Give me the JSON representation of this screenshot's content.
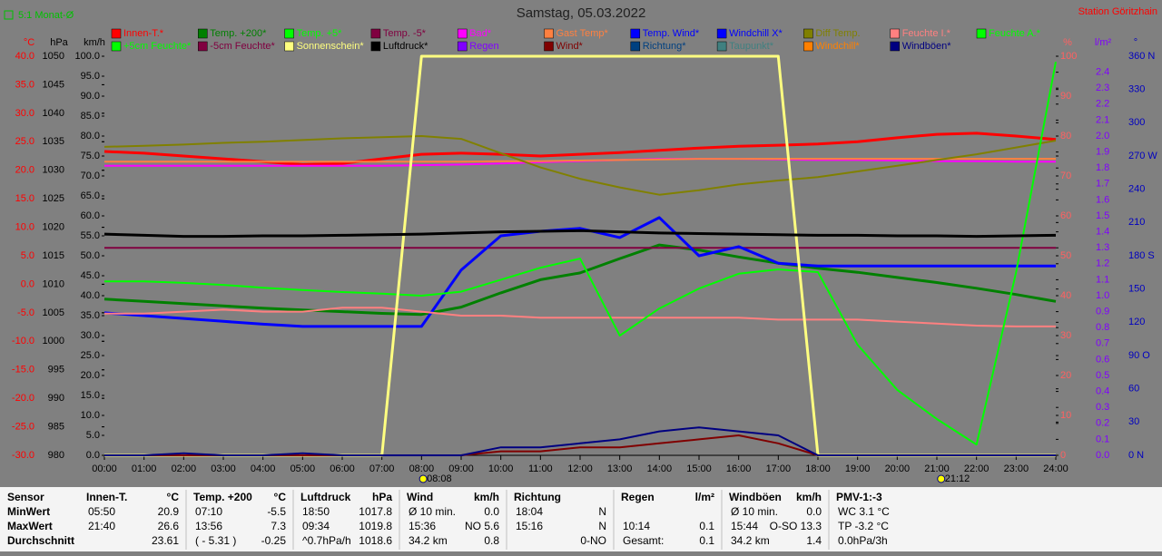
{
  "chart_data": {
    "type": "line",
    "title": "Samstag, 05.03.2022",
    "subtitle": "Station Göritzhain",
    "note": "5:1 Monat-Ø",
    "sun_markers": [
      {
        "value": 8.133,
        "label": "08:08"
      },
      {
        "value": 21.2,
        "label": "21:12"
      }
    ],
    "x": [
      0,
      1,
      2,
      3,
      4,
      5,
      6,
      7,
      8,
      9,
      10,
      11,
      12,
      13,
      14,
      15,
      16,
      17,
      18,
      19,
      20,
      21,
      22,
      23,
      24
    ],
    "xlim": [
      0,
      24
    ],
    "xticks": [
      {
        "value": 0,
        "label": "00:00"
      },
      {
        "value": 1,
        "label": "01:00"
      },
      {
        "value": 2,
        "label": "02:00"
      },
      {
        "value": 3,
        "label": "03:00"
      },
      {
        "value": 4,
        "label": "04:00"
      },
      {
        "value": 5,
        "label": "05:00"
      },
      {
        "value": 6,
        "label": "06:00"
      },
      {
        "value": 7,
        "label": "07:00"
      },
      {
        "value": 8,
        "label": "08:00"
      },
      {
        "value": 9,
        "label": "09:00"
      },
      {
        "value": 10,
        "label": "10:00"
      },
      {
        "value": 11,
        "label": "11:00"
      },
      {
        "value": 12,
        "label": "12:00"
      },
      {
        "value": 13,
        "label": "13:00"
      },
      {
        "value": 14,
        "label": "14:00"
      },
      {
        "value": 15,
        "label": "15:00"
      },
      {
        "value": 16,
        "label": "16:00"
      },
      {
        "value": 17,
        "label": "17:00"
      },
      {
        "value": 18,
        "label": "18:00"
      },
      {
        "value": 19,
        "label": "19:00"
      },
      {
        "value": 20,
        "label": "20:00"
      },
      {
        "value": 21,
        "label": "21:00"
      },
      {
        "value": 22,
        "label": "22:00"
      },
      {
        "value": 23,
        "label": "23:00"
      },
      {
        "value": 24,
        "label": "24:00"
      }
    ],
    "axes": {
      "temp": {
        "label": "°C",
        "side": "left",
        "color": "#ff0000",
        "lim": [
          -30,
          40
        ],
        "ticks": [
          {
            "value": 40,
            "label": "40.0"
          },
          {
            "value": 35,
            "label": "35.0"
          },
          {
            "value": 30,
            "label": "30.0"
          },
          {
            "value": 25,
            "label": "25.0"
          },
          {
            "value": 20,
            "label": "20.0"
          },
          {
            "value": 15,
            "label": "15.0"
          },
          {
            "value": 10,
            "label": "10.0"
          },
          {
            "value": 5,
            "label": "5.0"
          },
          {
            "value": 0,
            "label": "0.0"
          },
          {
            "value": -5,
            "label": "-5.0"
          },
          {
            "value": -10,
            "label": "-10.0"
          },
          {
            "value": -15,
            "label": "-15.0"
          },
          {
            "value": -20,
            "label": "-20.0"
          },
          {
            "value": -25,
            "label": "-25.0"
          },
          {
            "value": -30,
            "label": "-30.0"
          }
        ]
      },
      "pressure": {
        "label": "hPa",
        "side": "left",
        "color": "#000000",
        "lim": [
          980,
          1050
        ],
        "ticks": [
          1050,
          1045,
          1040,
          1035,
          1030,
          1025,
          1020,
          1015,
          1010,
          1005,
          1000,
          995,
          990,
          985,
          980
        ]
      },
      "speed": {
        "label": "km/h",
        "side": "left",
        "color": "#000000",
        "lim": [
          0,
          100
        ],
        "ticks": [
          {
            "value": 100,
            "label": "100.0"
          },
          {
            "value": 95,
            "label": "95.0"
          },
          {
            "value": 90,
            "label": "90.0"
          },
          {
            "value": 85,
            "label": "85.0"
          },
          {
            "value": 80,
            "label": "80.0"
          },
          {
            "value": 75,
            "label": "75.0"
          },
          {
            "value": 70,
            "label": "70.0"
          },
          {
            "value": 65,
            "label": "65.0"
          },
          {
            "value": 60,
            "label": "60.0"
          },
          {
            "value": 55,
            "label": "55.0"
          },
          {
            "value": 50,
            "label": "50.0"
          },
          {
            "value": 45,
            "label": "45.0"
          },
          {
            "value": 40,
            "label": "40.0"
          },
          {
            "value": 35,
            "label": "35.0"
          },
          {
            "value": 30,
            "label": "30.0"
          },
          {
            "value": 25,
            "label": "25.0"
          },
          {
            "value": 20,
            "label": "20.0"
          },
          {
            "value": 15,
            "label": "15.0"
          },
          {
            "value": 10,
            "label": "10.0"
          },
          {
            "value": 5,
            "label": "5.0"
          },
          {
            "value": 0,
            "label": "0.0"
          }
        ]
      },
      "humidity": {
        "label": "%",
        "side": "right",
        "color": "#ff6060",
        "lim": [
          0,
          100
        ],
        "ticks": [
          100,
          90,
          80,
          70,
          60,
          50,
          40,
          30,
          20,
          10,
          0
        ]
      },
      "rain": {
        "label": "l/m²",
        "side": "right",
        "color": "#8000ff",
        "lim": [
          0,
          2.5
        ],
        "ticks": [
          2.4,
          2.3,
          2.2,
          2.1,
          {
            "value": 2,
            "label": "2.0"
          },
          1.9,
          1.8,
          1.7,
          1.6,
          1.5,
          1.4,
          1.3,
          1.2,
          1.1,
          {
            "value": 1,
            "label": "1.0"
          },
          0.9,
          0.8,
          0.7,
          0.6,
          0.5,
          0.4,
          0.3,
          0.2,
          0.1,
          {
            "value": 0,
            "label": "0.0"
          }
        ]
      },
      "direction": {
        "label": "°",
        "side": "right",
        "color": "#0000c0",
        "lim": [
          0,
          360
        ],
        "ticks": [
          {
            "value": 360,
            "label": "360 N"
          },
          330,
          300,
          {
            "value": 270,
            "label": "270 W"
          },
          240,
          210,
          {
            "value": 180,
            "label": "180 S"
          },
          150,
          120,
          {
            "value": 90,
            "label": "90 O"
          },
          60,
          30,
          {
            "value": 0,
            "label": "0 N"
          }
        ]
      }
    },
    "series": [
      {
        "name": "Innen-T.*",
        "color": "#ff0000",
        "axis": "temp",
        "width": 3,
        "values": [
          23.3,
          23.0,
          22.5,
          22.0,
          21.5,
          21.0,
          21.2,
          22.0,
          22.8,
          23.0,
          22.8,
          22.5,
          22.8,
          23.1,
          23.5,
          23.9,
          24.2,
          24.4,
          24.6,
          25.0,
          25.7,
          26.3,
          26.5,
          26.0,
          25.4
        ]
      },
      {
        "name": "Temp. +200*",
        "color": "#008000",
        "axis": "temp",
        "width": 3,
        "values": [
          -2.6,
          -3.0,
          -3.4,
          -3.8,
          -4.2,
          -4.5,
          -4.8,
          -5.1,
          -5.3,
          -4.0,
          -1.5,
          0.8,
          2.0,
          4.5,
          6.9,
          6.0,
          4.8,
          3.7,
          2.8,
          2.1,
          1.2,
          0.3,
          -0.7,
          -1.8,
          -3.0
        ]
      },
      {
        "name": "Temp. +5*",
        "color": "#00ff00",
        "axis": "temp"
      },
      {
        "name": "Temp. -5*",
        "color": "#800040",
        "axis": "temp",
        "width": 2,
        "values": [
          6.4,
          6.4,
          6.4,
          6.4,
          6.4,
          6.4,
          6.4,
          6.4,
          6.4,
          6.4,
          6.4,
          6.4,
          6.4,
          6.4,
          6.4,
          6.4,
          6.4,
          6.4,
          6.4,
          6.4,
          6.4,
          6.4,
          6.4,
          6.4,
          6.4
        ]
      },
      {
        "name": "Bad*",
        "color": "#ff00ff",
        "axis": "temp",
        "width": 2,
        "values": [
          20.8,
          20.8,
          20.8,
          20.8,
          20.8,
          20.8,
          20.8,
          20.8,
          20.9,
          21.0,
          21.2,
          21.4,
          21.6,
          21.8,
          22.0,
          22.0,
          22.0,
          21.9,
          21.8,
          21.8,
          21.7,
          21.6,
          21.6,
          21.5,
          21.5
        ]
      },
      {
        "name": "Gast Temp*",
        "color": "#ff8040",
        "axis": "temp",
        "width": 2,
        "values": [
          21.5,
          21.5,
          21.5,
          21.5,
          21.5,
          21.5,
          21.5,
          21.5,
          21.5,
          21.5,
          21.6,
          21.6,
          21.7,
          21.8,
          21.9,
          22.0,
          22.0,
          22.0,
          22.0,
          22.0,
          22.0,
          22.0,
          22.0,
          22.0,
          22.0
        ]
      },
      {
        "name": "Temp. Wind*",
        "color": "#0000ff",
        "axis": "temp",
        "width": 3,
        "values": [
          -5.0,
          -5.5,
          -6.0,
          -6.5,
          -7.0,
          -7.4,
          -7.4,
          -7.4,
          -7.4,
          2.5,
          8.5,
          9.3,
          9.8,
          8.2,
          11.7,
          5.0,
          6.6,
          3.7,
          3.2,
          3.2,
          3.2,
          3.2,
          3.2,
          3.2,
          3.2
        ]
      },
      {
        "name": "Windchill X*",
        "color": "#0000ff",
        "axis": "temp"
      },
      {
        "name": "Diff Temp.",
        "color": "#808000",
        "axis": "temp",
        "width": 2,
        "values": [
          24.1,
          24.3,
          24.5,
          24.8,
          25.0,
          25.3,
          25.6,
          25.8,
          26.0,
          25.5,
          23.0,
          20.5,
          18.5,
          17.0,
          15.7,
          16.5,
          17.5,
          18.2,
          18.8,
          19.8,
          20.8,
          21.8,
          22.8,
          24.0,
          25.2
        ]
      },
      {
        "name": "Feuchte I.*",
        "color": "#ff8080",
        "axis": "humidity",
        "width": 2,
        "values": [
          35.5,
          35.5,
          36,
          36.5,
          36,
          36,
          37,
          37,
          36,
          35,
          35,
          34.5,
          34.5,
          34.5,
          34.5,
          34.5,
          34.5,
          34,
          34,
          34,
          33.5,
          33,
          32.5,
          32.3,
          32.3
        ]
      },
      {
        "name": "Feuchte A.*",
        "color": "#00ff00",
        "axis": "humidity",
        "width": 2,
        "values": [
          43.6,
          43.6,
          43.2,
          42.7,
          42.0,
          41.4,
          40.9,
          40.5,
          40.0,
          41.0,
          44.0,
          47.0,
          49.3,
          30,
          36.8,
          41.8,
          45.5,
          46.6,
          45.9,
          27.7,
          16.4,
          9.1,
          2.7,
          45.9,
          98.6
        ]
      },
      {
        "name": "+5cm Feuchte*",
        "color": "#00ff00",
        "axis": "humidity"
      },
      {
        "name": "-5cm Feuchte*",
        "color": "#800040",
        "axis": "humidity"
      },
      {
        "name": "Sonnenschein*",
        "color": "#ffff80",
        "axis": "humidity",
        "width": 3,
        "values": [
          0,
          0,
          0,
          0,
          0,
          0,
          0,
          0,
          100,
          100,
          100,
          100,
          100,
          100,
          100,
          100,
          100,
          100,
          0,
          0,
          0,
          0,
          0,
          0,
          0
        ]
      },
      {
        "name": "Luftdruck*",
        "color": "#000000",
        "axis": "pressure",
        "width": 3,
        "values": [
          1018.8,
          1018.6,
          1018.4,
          1018.4,
          1018.5,
          1018.5,
          1018.6,
          1018.7,
          1018.8,
          1019.0,
          1019.2,
          1019.3,
          1019.4,
          1019.2,
          1019.0,
          1018.9,
          1018.8,
          1018.7,
          1018.6,
          1018.6,
          1018.5,
          1018.5,
          1018.4,
          1018.5,
          1018.6
        ]
      },
      {
        "name": "Regen",
        "color": "#8000ff",
        "axis": "rain"
      },
      {
        "name": "Wind*",
        "color": "#800000",
        "axis": "speed",
        "width": 2,
        "values": [
          0,
          0,
          0,
          0,
          0,
          0,
          0,
          0,
          0,
          0,
          1,
          1,
          2,
          2,
          3,
          4,
          5,
          3,
          0,
          0,
          0,
          0,
          0,
          0,
          0
        ]
      },
      {
        "name": "Richtung*",
        "color": "#004080",
        "axis": "direction"
      },
      {
        "name": "Taupunkt*",
        "color": "#408080",
        "axis": "temp"
      },
      {
        "name": "Windchill*",
        "color": "#ff8000",
        "axis": "temp"
      },
      {
        "name": "Windböen*",
        "color": "#000080",
        "axis": "speed",
        "width": 2,
        "values": [
          0,
          0,
          0.5,
          0,
          0,
          0.5,
          0,
          0,
          0,
          0,
          2,
          2,
          3,
          4,
          6,
          7,
          6,
          5,
          0,
          0,
          0,
          0,
          0,
          0,
          0
        ]
      }
    ]
  },
  "table": {
    "columns": [
      {
        "header": "Sensor",
        "rows": [
          [
            "MinWert"
          ],
          [
            "MaxWert"
          ],
          [
            "Durchschnitt"
          ]
        ]
      },
      {
        "header": "Innen-T.",
        "unit": "°C",
        "rows": [
          [
            "05:50",
            "20.9"
          ],
          [
            "21:40",
            "26.6"
          ],
          [
            "23.61"
          ]
        ]
      },
      {
        "header": "Temp. +200",
        "unit": "°C",
        "rows": [
          [
            "07:10",
            "-5.5"
          ],
          [
            "13:56",
            "7.3"
          ],
          [
            "( - 5.31 )",
            "-0.25"
          ]
        ]
      },
      {
        "header": "Luftdruck",
        "unit": "hPa",
        "rows": [
          [
            "18:50",
            "1017.8"
          ],
          [
            "09:34",
            "1019.8"
          ],
          [
            "^0.7hPa/h",
            "1018.6"
          ]
        ]
      },
      {
        "header": "Wind",
        "unit": "km/h",
        "rows": [
          [
            "Ø 10 min.",
            "0.0"
          ],
          [
            "15:36",
            "NO 5.6"
          ],
          [
            "34.2 km",
            "0.8"
          ]
        ]
      },
      {
        "header": "Richtung",
        "rows": [
          [
            "18:04",
            "N"
          ],
          [
            "15:16",
            "N"
          ],
          [
            "0-NO"
          ]
        ]
      },
      {
        "header": "Regen",
        "unit": "l/m²",
        "rows": [
          [],
          [
            "10:14",
            "0.1"
          ],
          [
            "Gesamt:",
            "0.1"
          ]
        ]
      },
      {
        "header": "Windböen",
        "unit": "km/h",
        "rows": [
          [
            "Ø 10 min.",
            "0.0"
          ],
          [
            "15:44",
            "O-SO 13.3"
          ],
          [
            "34.2 km",
            "1.4"
          ]
        ]
      },
      {
        "header": "PMV-1:-3",
        "rows": [
          [
            "WC 3.1 °C"
          ],
          [
            "TP -3.2 °C"
          ],
          [
            "0.0hPa/3h"
          ]
        ]
      }
    ]
  }
}
